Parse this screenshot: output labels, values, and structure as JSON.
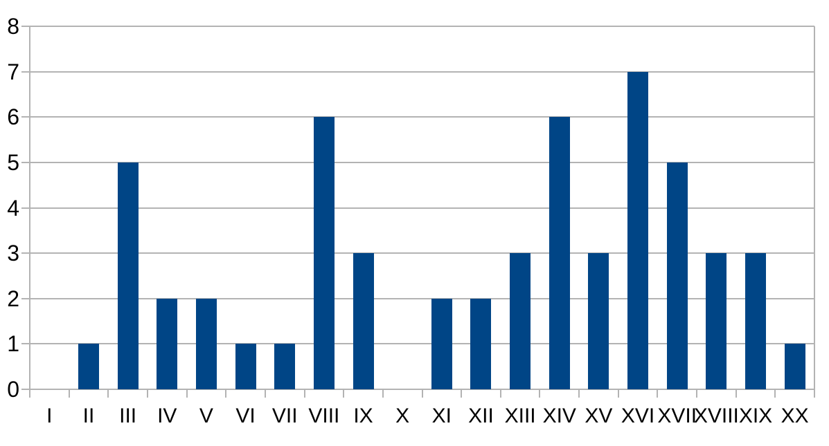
{
  "chart_data": {
    "type": "bar",
    "title": "",
    "xlabel": "",
    "ylabel": "",
    "categories": [
      "I",
      "II",
      "III",
      "IV",
      "V",
      "VI",
      "VII",
      "VIII",
      "IX",
      "X",
      "XI",
      "XII",
      "XIII",
      "XIV",
      "XV",
      "XVI",
      "XVII",
      "XVIII",
      "XIX",
      "XX"
    ],
    "values": [
      0,
      1,
      5,
      2,
      2,
      1,
      1,
      6,
      3,
      0,
      2,
      2,
      3,
      6,
      3,
      7,
      5,
      3,
      3,
      1
    ],
    "ylim": [
      0,
      8
    ],
    "ytick_step": 1,
    "yticks": [
      0,
      1,
      2,
      3,
      4,
      5,
      6,
      7,
      8
    ],
    "grid": true,
    "legend": "none",
    "colors": {
      "bar": "#004586",
      "grid": "#b3b3b3",
      "axis": "#b3b3b3",
      "text": "#000000",
      "background": "#ffffff"
    }
  }
}
